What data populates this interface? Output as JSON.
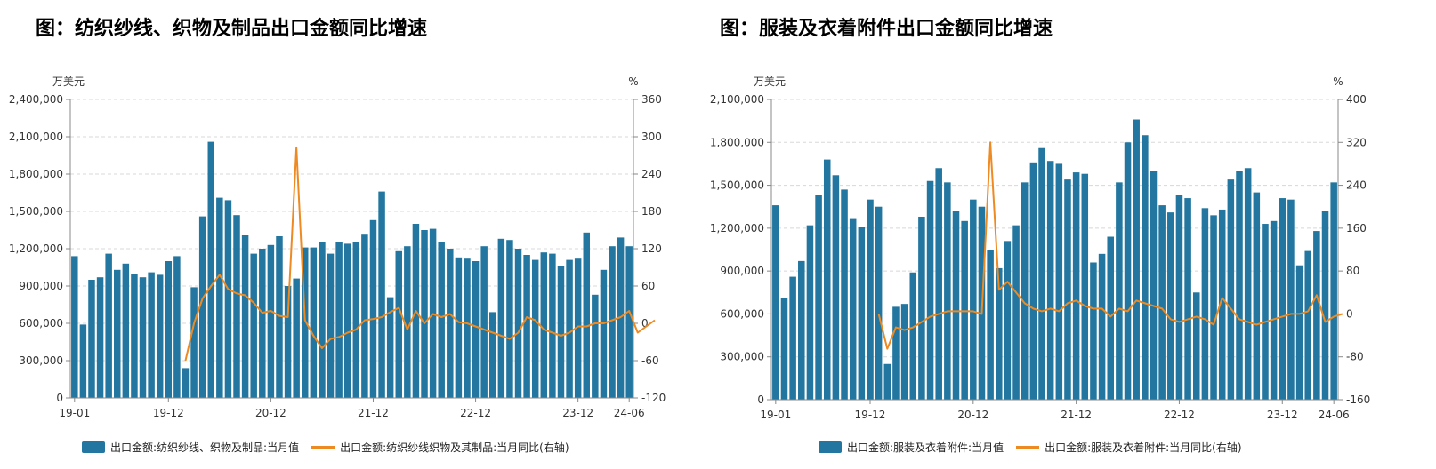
{
  "chart_data": [
    {
      "type": "bar+line",
      "title": "图：纺织纱线、织物及制品出口金额同比增速",
      "y_left_unit": "万美元",
      "y_right_unit": "%",
      "y_left_ticks": [
        "0",
        "300,000",
        "600,000",
        "900,000",
        "1,200,000",
        "1,500,000",
        "1,800,000",
        "2,100,000",
        "2,400,000"
      ],
      "y_right_ticks": [
        "-120",
        "-60",
        "0",
        "60",
        "120",
        "180",
        "240",
        "300",
        "360"
      ],
      "ylim_left": [
        0,
        2400000
      ],
      "ylim_right": [
        -120,
        360
      ],
      "x_tick_labels": [
        "19-01",
        "19-12",
        "20-12",
        "21-12",
        "22-12",
        "23-12",
        "24-06"
      ],
      "x_start": "2019-01",
      "x_end": "2024-06",
      "grid": true,
      "legend_position": "bottom",
      "series": [
        {
          "name": "出口金额:纺织纱线、织物及制品:当月值",
          "type": "bar",
          "axis": "left",
          "color": "#22769f",
          "values": [
            1140000,
            590000,
            950000,
            970000,
            1160000,
            1030000,
            1080000,
            1000000,
            970000,
            1010000,
            990000,
            1100000,
            1140000,
            240000,
            890000,
            1460000,
            2060000,
            1610000,
            1590000,
            1470000,
            1310000,
            1160000,
            1200000,
            1230000,
            1300000,
            900000,
            960000,
            1210000,
            1210000,
            1250000,
            1160000,
            1250000,
            1240000,
            1250000,
            1320000,
            1430000,
            1660000,
            810000,
            1180000,
            1220000,
            1400000,
            1350000,
            1360000,
            1250000,
            1200000,
            1130000,
            1120000,
            1100000,
            1220000,
            690000,
            1280000,
            1270000,
            1200000,
            1150000,
            1110000,
            1170000,
            1160000,
            1060000,
            1110000,
            1120000,
            1330000,
            830000,
            1030000,
            1220000,
            1290000,
            1220000
          ]
        },
        {
          "name": "出口金额:纺织纱线织物及其制品:当月同比(右轴)",
          "type": "line",
          "axis": "right",
          "color": "#ee8a22",
          "start_index": 13,
          "values": [
            -60,
            0,
            40,
            60,
            78,
            55,
            48,
            45,
            33,
            17,
            20,
            12,
            10,
            283,
            5,
            -20,
            -40,
            -25,
            -22,
            -15,
            -10,
            5,
            7,
            10,
            18,
            25,
            -10,
            20,
            0,
            15,
            10,
            15,
            2,
            0,
            -5,
            -10,
            -15,
            -20,
            -25,
            -15,
            10,
            5,
            -10,
            -15,
            -20,
            -15,
            -5,
            -5,
            0,
            0,
            5,
            10,
            20,
            -15,
            -5,
            5
          ]
        }
      ]
    },
    {
      "type": "bar+line",
      "title": "图：服装及衣着附件出口金额同比增速",
      "y_left_unit": "万美元",
      "y_right_unit": "%",
      "y_left_ticks": [
        "0",
        "300,000",
        "600,000",
        "900,000",
        "1,200,000",
        "1,500,000",
        "1,800,000",
        "2,100,000"
      ],
      "y_right_ticks": [
        "-160",
        "-80",
        "0",
        "80",
        "160",
        "240",
        "320",
        "400"
      ],
      "ylim_left": [
        0,
        2100000
      ],
      "ylim_right": [
        -160,
        400
      ],
      "x_tick_labels": [
        "19-01",
        "19-12",
        "20-12",
        "21-12",
        "22-12",
        "23-12",
        "24-06"
      ],
      "x_start": "2019-01",
      "x_end": "2024-06",
      "grid": true,
      "legend_position": "bottom",
      "series": [
        {
          "name": "出口金额:服装及衣着附件:当月值",
          "type": "bar",
          "axis": "left",
          "color": "#22769f",
          "values": [
            1360000,
            710000,
            860000,
            970000,
            1220000,
            1430000,
            1680000,
            1570000,
            1470000,
            1270000,
            1210000,
            1400000,
            1350000,
            250000,
            650000,
            670000,
            890000,
            1280000,
            1530000,
            1620000,
            1520000,
            1320000,
            1250000,
            1400000,
            1350000,
            1050000,
            920000,
            1110000,
            1220000,
            1520000,
            1660000,
            1760000,
            1670000,
            1650000,
            1540000,
            1590000,
            1580000,
            960000,
            1020000,
            1140000,
            1520000,
            1800000,
            1960000,
            1850000,
            1600000,
            1360000,
            1310000,
            1430000,
            1410000,
            750000,
            1340000,
            1290000,
            1330000,
            1540000,
            1600000,
            1620000,
            1450000,
            1230000,
            1250000,
            1410000,
            1400000,
            940000,
            1040000,
            1180000,
            1320000,
            1520000
          ]
        },
        {
          "name": "出口金额:服装及衣着附件:当月同比(右轴)",
          "type": "line",
          "axis": "right",
          "color": "#ee8a22",
          "start_index": 12,
          "values": [
            0,
            -65,
            -25,
            -30,
            -25,
            -15,
            -5,
            0,
            5,
            5,
            5,
            5,
            0,
            320,
            45,
            60,
            40,
            20,
            10,
            5,
            10,
            5,
            20,
            25,
            15,
            10,
            10,
            -5,
            10,
            5,
            25,
            20,
            15,
            10,
            -10,
            -15,
            -10,
            -5,
            -10,
            -20,
            30,
            10,
            -10,
            -15,
            -20,
            -15,
            -10,
            -5,
            0,
            0,
            5,
            35,
            -15,
            -5,
            0
          ]
        }
      ]
    }
  ]
}
